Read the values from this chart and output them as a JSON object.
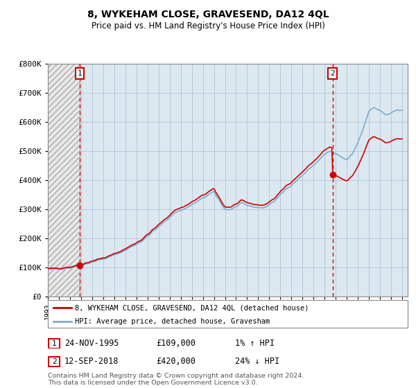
{
  "title": "8, WYKEHAM CLOSE, GRAVESEND, DA12 4QL",
  "subtitle": "Price paid vs. HM Land Registry's House Price Index (HPI)",
  "sale1_date": "24-NOV-1995",
  "sale1_price": 109000,
  "sale1_hpi": "1% ↑ HPI",
  "sale1_label": "1",
  "sale2_date": "12-SEP-2018",
  "sale2_price": 420000,
  "sale2_hpi": "24% ↓ HPI",
  "sale2_label": "2",
  "legend_red": "8, WYKEHAM CLOSE, GRAVESEND, DA12 4QL (detached house)",
  "legend_blue": "HPI: Average price, detached house, Gravesham",
  "footer": "Contains HM Land Registry data © Crown copyright and database right 2024.\nThis data is licensed under the Open Government Licence v3.0.",
  "ylim": [
    0,
    800000
  ],
  "yticks": [
    0,
    100000,
    200000,
    300000,
    400000,
    500000,
    600000,
    700000,
    800000
  ],
  "ytick_labels": [
    "£0",
    "£100K",
    "£200K",
    "£300K",
    "£400K",
    "£500K",
    "£600K",
    "£700K",
    "£800K"
  ],
  "hpi_color": "#7aadcf",
  "sale_color": "#cc0000",
  "vline_color": "#cc0000",
  "grid_color": "#b0c4d8",
  "box_color": "#cc0000",
  "chart_bg": "#dce8f0",
  "hatch_bg": "#e8e8e8",
  "xlim_left": 1993.0,
  "xlim_right": 2025.5
}
